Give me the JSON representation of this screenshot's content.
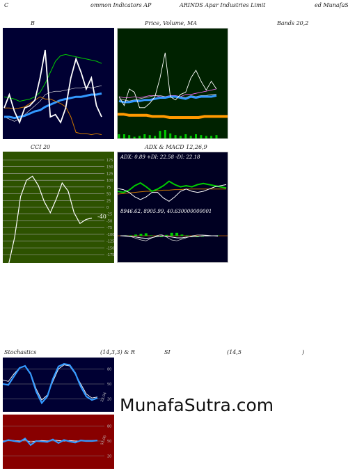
{
  "header": {
    "left": "C",
    "mid1": "ommon  Indicators AP",
    "mid2": "ARINDS Apar Industries Limit",
    "right": "ed MunafaS"
  },
  "row1": {
    "bollinger_label": "B",
    "price_label": "Price,   Volume,  MA",
    "bands_label": "Bands 20,2"
  },
  "row2": {
    "cci_label": "CCI 20",
    "adx_label": "ADX  & MACD 12,26,9",
    "adx_text": "ADX: 0.89  +DI: 22.58  -DI: 22.18",
    "macd_text": "8946.62,  8905.99,  40.630000000001",
    "cci_value_label": "-40"
  },
  "row3": {
    "stoch_label": "Stochastics",
    "stoch_params": "(14,3,3) & R",
    "rsi_label": "SI",
    "rsi_params": "(14,5",
    "rsi_close": ")",
    "stoch_value_label": "23.94",
    "rsi_value_label": "51.06"
  },
  "watermark": "MunafaSutra.com",
  "colors": {
    "navy": "#000033",
    "green_bg": "#002200",
    "red_bg": "#880000",
    "blue_line": "#3399ff",
    "green_line": "#00cc00",
    "orange_line": "#cc7700"
  },
  "chart_data": [
    {
      "type": "line",
      "panel": "bollinger",
      "series": [
        {
          "values": [
            0.62,
            0.63,
            0.64,
            0.66,
            0.65,
            0.64,
            0.62,
            0.58,
            0.5,
            0.4,
            0.3,
            0.25,
            0.24,
            0.25,
            0.26,
            0.27,
            0.28,
            0.29,
            0.3,
            0.32
          ]
        },
        {
          "values": [
            0.8,
            0.82,
            0.84,
            0.82,
            0.78,
            0.74,
            0.7,
            0.66,
            0.6,
            0.58,
            0.57,
            0.57,
            0.56,
            0.55,
            0.54,
            0.54,
            0.53,
            0.54,
            0.53,
            0.52
          ]
        },
        {
          "values": [
            0.8,
            0.8,
            0.81,
            0.8,
            0.79,
            0.77,
            0.75,
            0.74,
            0.71,
            0.69,
            0.67,
            0.65,
            0.64,
            0.63,
            0.62,
            0.62,
            0.61,
            0.6,
            0.6,
            0.59
          ]
        },
        {
          "values": [
            0.72,
            0.72,
            0.73,
            0.72,
            0.71,
            0.68,
            0.65,
            0.62,
            0.64,
            0.64,
            0.66,
            0.68,
            0.71,
            0.8,
            0.94,
            0.95,
            0.95,
            0.96,
            0.95,
            0.96
          ]
        },
        {
          "values": [
            0.72,
            0.6,
            0.75,
            0.85,
            0.72,
            0.7,
            0.65,
            0.45,
            0.2,
            0.8,
            0.78,
            0.85,
            0.72,
            0.45,
            0.28,
            0.4,
            0.55,
            0.45,
            0.7,
            0.8
          ]
        }
      ]
    },
    {
      "type": "line",
      "panel": "price",
      "series": [
        {
          "values": [
            0.62,
            0.63,
            0.63,
            0.62,
            0.63,
            0.62,
            0.61,
            0.61,
            0.62,
            0.62,
            0.61,
            0.61,
            0.62,
            0.6,
            0.6,
            0.59,
            0.58,
            0.57,
            0.56,
            0.55
          ]
        },
        {
          "values": [
            0.64,
            0.65,
            0.66,
            0.65,
            0.64,
            0.63,
            0.62,
            0.61,
            0.61,
            0.62,
            0.62,
            0.62,
            0.62,
            0.63,
            0.61,
            0.62,
            0.61,
            0.61,
            0.6,
            0.6
          ]
        },
        {
          "values": [
            0.66,
            0.67,
            0.67,
            0.66,
            0.66,
            0.65,
            0.65,
            0.64,
            0.63,
            0.63,
            0.62,
            0.62,
            0.63,
            0.64,
            0.62,
            0.63,
            0.62,
            0.62,
            0.62,
            0.61
          ]
        },
        {
          "values": [
            0.78,
            0.78,
            0.79,
            0.79,
            0.79,
            0.79,
            0.8,
            0.8,
            0.8,
            0.81,
            0.81,
            0.81,
            0.81,
            0.81,
            0.81,
            0.8,
            0.8,
            0.8,
            0.8,
            0.8
          ]
        },
        {
          "values": [
            0.62,
            0.7,
            0.55,
            0.58,
            0.72,
            0.72,
            0.68,
            0.62,
            0.45,
            0.22,
            0.62,
            0.65,
            0.6,
            0.58,
            0.45,
            0.38,
            0.48,
            0.56,
            0.48,
            0.55
          ]
        },
        {
          "values": [
            0.5,
            0.5,
            0.4,
            0.2,
            0.3,
            0.5,
            0.4,
            0.3,
            0.9,
            1.0,
            0.6,
            0.4,
            0.3,
            0.5,
            0.3,
            0.5,
            0.4,
            0.3,
            0.3,
            0.4
          ]
        }
      ]
    },
    {
      "type": "line",
      "panel": "cci",
      "yticks": [
        175,
        150,
        125,
        100,
        75,
        50,
        25,
        0,
        -25,
        -50,
        -75,
        -100,
        -125,
        -150,
        -175
      ],
      "series": [
        {
          "values": [
            -220,
            -210,
            -110,
            40,
            100,
            115,
            80,
            20,
            -20,
            30,
            90,
            60,
            -20,
            -60,
            -45,
            -40
          ]
        }
      ]
    },
    {
      "type": "line",
      "panel": "adx",
      "series": [
        {
          "name": "ADX",
          "values": [
            0.75,
            0.74,
            0.73,
            0.72,
            0.71,
            0.7,
            0.7,
            0.69,
            0.68,
            0.68,
            0.67,
            0.67,
            0.66,
            0.66,
            0.66,
            0.66,
            0.66,
            0.66,
            0.66,
            0.66
          ]
        },
        {
          "name": "+DI",
          "values": [
            0.7,
            0.72,
            0.68,
            0.6,
            0.55,
            0.62,
            0.7,
            0.66,
            0.6,
            0.52,
            0.58,
            0.62,
            0.6,
            0.62,
            0.58,
            0.56,
            0.58,
            0.6,
            0.62,
            0.64
          ]
        },
        {
          "name": "-DI",
          "values": [
            0.65,
            0.67,
            0.72,
            0.8,
            0.85,
            0.8,
            0.72,
            0.72,
            0.82,
            0.88,
            0.8,
            0.7,
            0.66,
            0.7,
            0.72,
            0.7,
            0.66,
            0.62,
            0.6,
            0.58
          ]
        }
      ]
    },
    {
      "type": "line",
      "panel": "macd",
      "series": [
        {
          "values": [
            0.5,
            0.5,
            0.51,
            0.53,
            0.55,
            0.56,
            0.55,
            0.52,
            0.5,
            0.51,
            0.53,
            0.55,
            0.55,
            0.53,
            0.52,
            0.51,
            0.5,
            0.5,
            0.5,
            0.5
          ]
        },
        {
          "values": [
            0.5,
            0.51,
            0.52,
            0.56,
            0.6,
            0.62,
            0.56,
            0.5,
            0.47,
            0.53,
            0.6,
            0.62,
            0.58,
            0.54,
            0.5,
            0.48,
            0.48,
            0.49,
            0.5,
            0.51
          ]
        }
      ]
    },
    {
      "type": "line",
      "panel": "stochastics",
      "yticks": [
        80,
        50,
        20
      ],
      "series": [
        {
          "values": [
            58,
            55,
            70,
            82,
            85,
            72,
            40,
            18,
            28,
            55,
            80,
            88,
            86,
            70,
            50,
            30,
            22,
            24
          ]
        },
        {
          "values": [
            50,
            48,
            65,
            82,
            86,
            70,
            35,
            12,
            25,
            60,
            85,
            90,
            88,
            72,
            45,
            25,
            18,
            22
          ]
        }
      ]
    },
    {
      "type": "line",
      "panel": "rsi",
      "yticks": [
        80,
        50,
        20
      ],
      "series": [
        {
          "values": [
            50,
            51,
            51,
            50,
            52,
            48,
            50,
            51,
            50,
            52,
            51,
            50,
            51,
            50,
            50,
            51,
            51,
            51
          ]
        },
        {
          "values": [
            48,
            52,
            50,
            48,
            55,
            42,
            50,
            49,
            48,
            53,
            46,
            52,
            49,
            47,
            51,
            50,
            50,
            51
          ]
        }
      ]
    }
  ]
}
